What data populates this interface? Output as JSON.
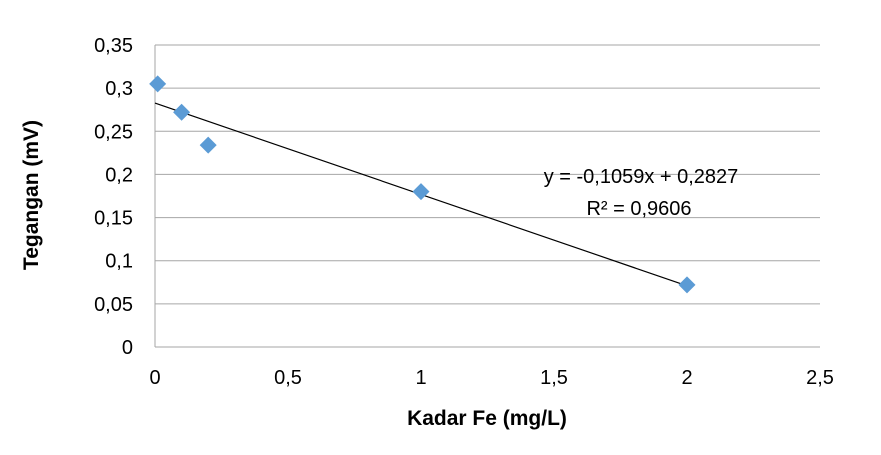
{
  "chart_data": {
    "type": "scatter",
    "title": "",
    "xlabel": "Kadar Fe (mg/L)",
    "ylabel": "Tegangan (mV)",
    "xlim": [
      0,
      2.5
    ],
    "ylim": [
      0,
      0.35
    ],
    "x_ticks": [
      "0",
      "0,5",
      "1",
      "1,5",
      "2",
      "2,5"
    ],
    "y_ticks": [
      "0",
      "0,05",
      "0,1",
      "0,15",
      "0,2",
      "0,25",
      "0,3",
      "0,35"
    ],
    "grid": "horizontal",
    "legend": "none",
    "series": [
      {
        "color": "#5b9bd5",
        "marker": "diamond",
        "points": [
          {
            "x": 0.01,
            "y": 0.305
          },
          {
            "x": 0.1,
            "y": 0.272
          },
          {
            "x": 0.2,
            "y": 0.234
          },
          {
            "x": 1.0,
            "y": 0.18
          },
          {
            "x": 2.0,
            "y": 0.072
          }
        ]
      }
    ],
    "trendline": {
      "type": "linear",
      "slope": -0.1059,
      "intercept": 0.2827,
      "x_range": [
        0,
        2
      ],
      "color": "#000000",
      "equation": "y = -0,1059x + 0,2827",
      "r_squared": "R² = 0,9606"
    }
  }
}
